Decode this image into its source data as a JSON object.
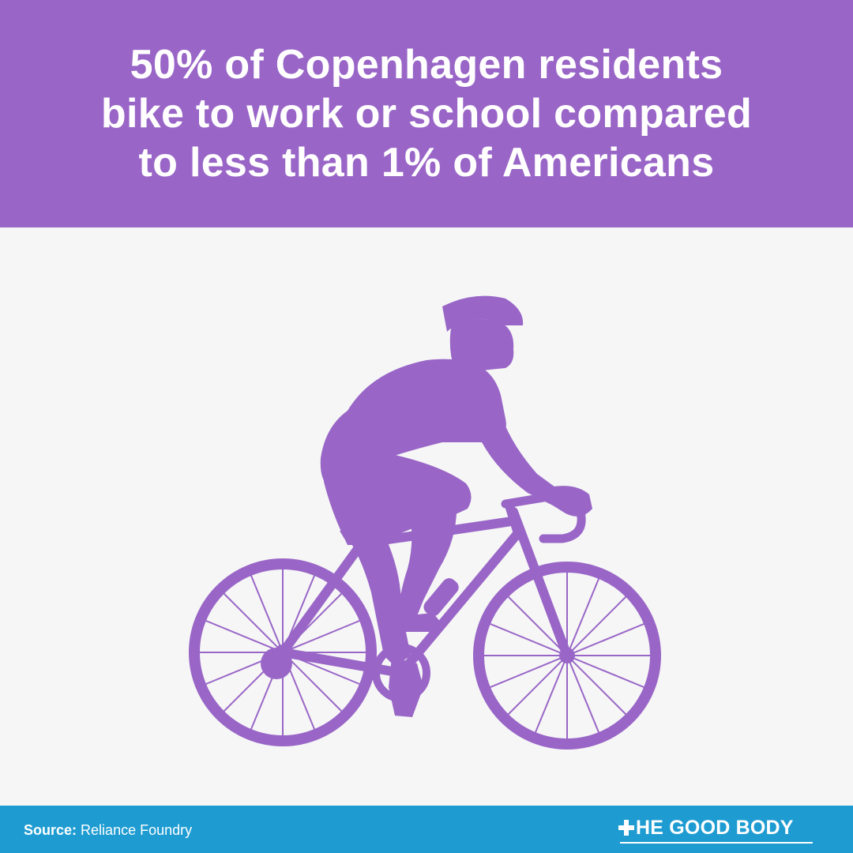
{
  "header": {
    "headline_lines": [
      "50% of Copenhagen residents",
      "bike to work or school compared",
      "to less than 1% of Americans"
    ]
  },
  "illustration": {
    "subject": "cyclist-silhouette",
    "color": "#9966c7"
  },
  "footer": {
    "source_label": "Source:",
    "source_value": "Reliance Foundry",
    "brand_text": "HE GOOD BODY",
    "background_color": "#1e9cd2"
  },
  "colors": {
    "header_bg": "#9966c7",
    "page_bg": "#f6f6f6",
    "footer_bg": "#1e9cd2",
    "text_on_color": "#ffffff"
  }
}
